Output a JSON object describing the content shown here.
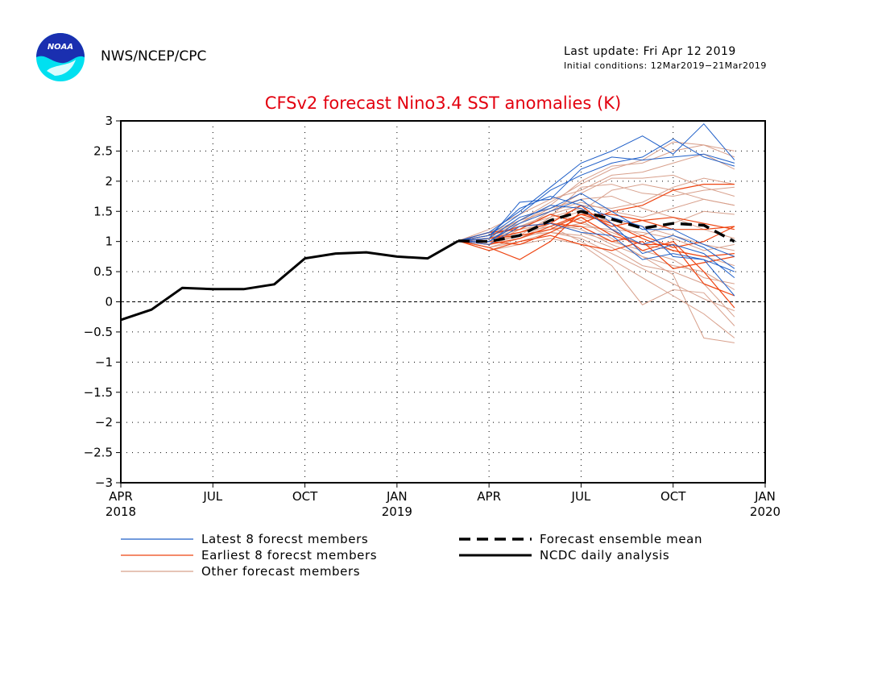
{
  "header": {
    "agency": "NWS/NCEP/CPC",
    "last_update": "Last update: Fri Apr 12 2019",
    "initial_conditions": "Initial conditions: 12Mar2019−21Mar2019",
    "logo_text": "NOAA"
  },
  "colors": {
    "latest": "#1f5fc8",
    "earliest": "#ee4411",
    "other": "#d8a08c",
    "analysis": "#000000",
    "mean": "#000000",
    "title": "#e3000f",
    "logo_blue": "#1a2fb0",
    "logo_cyan": "#00e0f0"
  },
  "chart_data": {
    "type": "line",
    "title": "CFSv2 forecast Nino3.4 SST anomalies (K)",
    "xlabel": "",
    "ylabel": "",
    "x_unit": "months since Apr 2018",
    "xlim": [
      0,
      21
    ],
    "ylim": [
      -3,
      3
    ],
    "yticks": [
      3,
      2.5,
      2,
      1.5,
      1,
      0.5,
      0,
      -0.5,
      -1,
      -1.5,
      -2,
      -2.5,
      -3
    ],
    "ytick_labels": [
      "3",
      "2.5",
      "2",
      "1.5",
      "1",
      "0.5",
      "0",
      "−0.5",
      "−1",
      "−1.5",
      "−2",
      "−2.5",
      "−3"
    ],
    "xticks": [
      {
        "x": 0,
        "label": "APR",
        "sublabel": "2018"
      },
      {
        "x": 3,
        "label": "JUL",
        "sublabel": ""
      },
      {
        "x": 6,
        "label": "OCT",
        "sublabel": ""
      },
      {
        "x": 9,
        "label": "JAN",
        "sublabel": "2019"
      },
      {
        "x": 12,
        "label": "APR",
        "sublabel": ""
      },
      {
        "x": 15,
        "label": "JUL",
        "sublabel": ""
      },
      {
        "x": 18,
        "label": "OCT",
        "sublabel": ""
      },
      {
        "x": 21,
        "label": "JAN",
        "sublabel": "2020"
      }
    ],
    "grid": true,
    "legend": [
      {
        "label": "Latest 8 forecst members",
        "style": "thin",
        "color_key": "latest"
      },
      {
        "label": "Earliest 8 forecst members",
        "style": "thin",
        "color_key": "earliest"
      },
      {
        "label": "Other forecast members",
        "style": "thin",
        "color_key": "other"
      },
      {
        "label": "Forecast ensemble mean",
        "style": "dashed",
        "color_key": "mean"
      },
      {
        "label": "NCDC daily analysis",
        "style": "thick",
        "color_key": "analysis"
      }
    ],
    "analysis": {
      "name": "NCDC daily analysis",
      "x": [
        0,
        1,
        2,
        3,
        4,
        5,
        6,
        7,
        8,
        9,
        10,
        11
      ],
      "y": [
        -0.3,
        -0.13,
        0.23,
        0.21,
        0.21,
        0.29,
        0.72,
        0.8,
        0.82,
        0.75,
        0.72,
        1.01
      ]
    },
    "ensemble_mean": {
      "name": "Forecast ensemble mean",
      "x": [
        11,
        12,
        13,
        14,
        15,
        16,
        17,
        18,
        19,
        20
      ],
      "y": [
        1.01,
        1.0,
        1.1,
        1.35,
        1.5,
        1.37,
        1.22,
        1.3,
        1.27,
        1.0
      ]
    },
    "forecast_x": [
      11,
      12,
      13,
      14,
      15,
      16,
      17,
      18,
      19,
      20
    ],
    "latest_members": [
      [
        1.01,
        1.05,
        1.65,
        1.7,
        2.2,
        2.4,
        2.35,
        2.4,
        2.45,
        2.3
      ],
      [
        1.01,
        1.15,
        1.5,
        1.9,
        2.3,
        2.5,
        2.75,
        2.45,
        2.95,
        2.35
      ],
      [
        1.01,
        1.1,
        1.45,
        1.85,
        2.1,
        2.3,
        2.4,
        2.7,
        2.4,
        2.25
      ],
      [
        1.01,
        1.0,
        1.3,
        1.5,
        1.7,
        1.3,
        0.8,
        0.95,
        0.8,
        0.4
      ],
      [
        1.01,
        0.95,
        1.25,
        1.3,
        1.15,
        1.1,
        0.7,
        0.8,
        0.7,
        0.1
      ],
      [
        1.01,
        1.0,
        1.35,
        1.6,
        1.55,
        1.2,
        0.95,
        1.1,
        0.9,
        0.55
      ],
      [
        1.01,
        1.05,
        1.4,
        1.55,
        1.8,
        1.5,
        1.2,
        1.2,
        0.95,
        0.75
      ],
      [
        1.01,
        1.1,
        1.55,
        1.75,
        1.6,
        1.4,
        1.25,
        0.75,
        0.7,
        0.5
      ]
    ],
    "earliest_members": [
      [
        1.01,
        0.9,
        0.7,
        1.0,
        1.5,
        1.25,
        1.35,
        1.2,
        1.2,
        1.25
      ],
      [
        1.01,
        1.05,
        1.1,
        1.2,
        1.45,
        1.3,
        1.05,
        0.85,
        0.75,
        0.8
      ],
      [
        1.01,
        1.15,
        1.2,
        1.45,
        1.3,
        1.5,
        1.6,
        1.85,
        1.95,
        1.95
      ],
      [
        1.01,
        0.85,
        1.0,
        1.1,
        0.95,
        0.85,
        1.0,
        0.55,
        0.65,
        0.75
      ],
      [
        1.01,
        1.0,
        0.95,
        1.15,
        1.4,
        1.1,
        0.95,
        0.95,
        0.3,
        0.1
      ],
      [
        1.01,
        1.1,
        1.25,
        1.3,
        1.6,
        1.2,
        0.85,
        1.0,
        0.5,
        -0.1
      ],
      [
        1.01,
        0.95,
        1.05,
        1.25,
        1.45,
        1.45,
        1.35,
        1.4,
        1.3,
        1.2
      ],
      [
        1.01,
        1.05,
        1.15,
        1.3,
        1.25,
        1.0,
        1.1,
        0.9,
        1.0,
        1.25
      ]
    ],
    "other_members": [
      [
        1.01,
        1.1,
        1.3,
        1.6,
        2.0,
        2.25,
        2.3,
        2.5,
        2.6,
        2.5
      ],
      [
        1.01,
        0.95,
        1.2,
        1.5,
        1.8,
        2.05,
        2.05,
        2.1,
        1.9,
        1.75
      ],
      [
        1.01,
        1.05,
        1.15,
        1.35,
        1.5,
        1.85,
        1.95,
        1.85,
        1.7,
        1.6
      ],
      [
        1.01,
        0.9,
        1.0,
        1.15,
        1.1,
        0.9,
        0.6,
        0.5,
        0.3,
        -0.25
      ],
      [
        1.01,
        1.0,
        1.15,
        1.25,
        1.0,
        0.7,
        0.4,
        0.1,
        -0.2,
        -0.6
      ],
      [
        1.01,
        1.1,
        1.25,
        1.45,
        1.35,
        1.05,
        0.75,
        0.45,
        -0.6,
        -0.68
      ],
      [
        1.01,
        0.95,
        1.05,
        1.2,
        1.25,
        1.2,
        1.15,
        1.05,
        0.85,
        0.95
      ],
      [
        1.01,
        1.15,
        1.3,
        1.55,
        1.7,
        1.75,
        1.55,
        1.4,
        1.2,
        1.05
      ],
      [
        1.01,
        1.2,
        1.45,
        1.7,
        1.85,
        2.1,
        2.15,
        2.3,
        2.45,
        2.2
      ],
      [
        1.01,
        1.05,
        1.2,
        1.3,
        1.2,
        0.95,
        0.75,
        0.6,
        0.5,
        0.2
      ],
      [
        1.01,
        0.85,
        0.95,
        1.05,
        0.95,
        0.6,
        -0.05,
        0.2,
        0.15,
        -0.4
      ],
      [
        1.01,
        1.0,
        1.1,
        1.4,
        1.55,
        1.3,
        1.1,
        1.3,
        1.5,
        1.45
      ],
      [
        1.01,
        1.1,
        1.35,
        1.5,
        1.65,
        1.5,
        1.4,
        1.55,
        1.7,
        1.6
      ],
      [
        1.01,
        0.95,
        1.1,
        1.2,
        1.3,
        1.15,
        0.95,
        0.85,
        0.75,
        0.6
      ],
      [
        1.01,
        1.05,
        1.25,
        1.4,
        1.9,
        1.95,
        1.8,
        1.75,
        1.85,
        1.9
      ],
      [
        1.01,
        1.0,
        1.15,
        1.25,
        1.4,
        1.35,
        1.25,
        1.1,
        0.95,
        0.85
      ],
      [
        1.01,
        0.9,
        1.05,
        1.3,
        1.15,
        1.0,
        0.85,
        0.7,
        0.4,
        0.3
      ],
      [
        1.01,
        1.15,
        1.35,
        1.65,
        1.95,
        2.2,
        2.35,
        2.65,
        2.6,
        2.4
      ],
      [
        1.01,
        1.05,
        1.2,
        1.45,
        1.6,
        1.55,
        1.65,
        1.9,
        2.05,
        1.95
      ],
      [
        1.01,
        0.95,
        1.1,
        1.15,
        1.05,
        0.8,
        0.55,
        0.3,
        0.05,
        -0.15
      ]
    ]
  }
}
